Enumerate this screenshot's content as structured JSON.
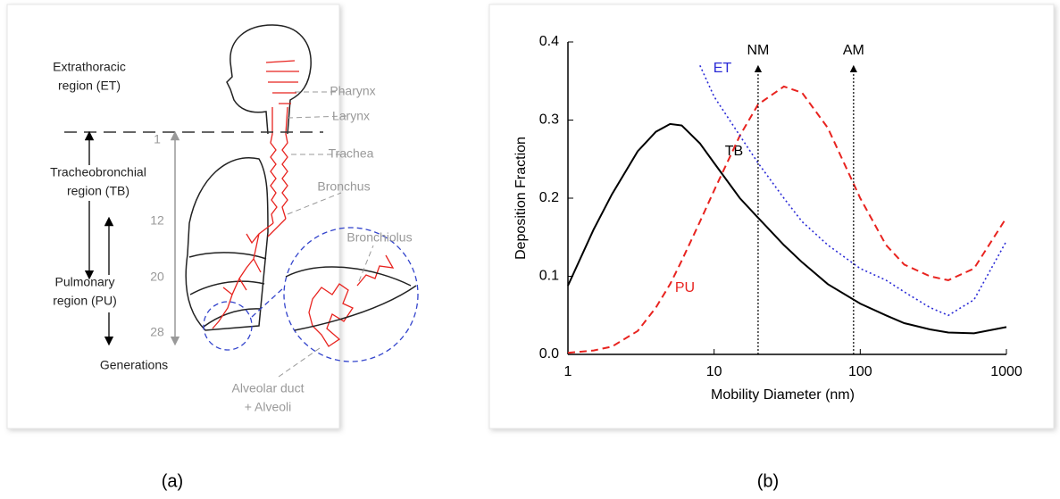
{
  "diagram": {
    "labels": [
      {
        "lines": [
          "Extrathoracic",
          "region (ET)"
        ]
      },
      {
        "lines": [
          "Tracheobronchial",
          "region (TB)"
        ]
      },
      {
        "lines": [
          "Pulmonary",
          "region (PU)"
        ]
      },
      {
        "lines": [
          "Pharynx"
        ]
      },
      {
        "lines": [
          "Larynx"
        ]
      },
      {
        "lines": [
          "Trachea"
        ]
      },
      {
        "lines": [
          "Bronchus"
        ]
      },
      {
        "lines": [
          "Bronchiolus"
        ]
      },
      {
        "lines": [
          "Alveolar duct",
          "+ Alveoli"
        ]
      },
      {
        "lines": [
          "Generations"
        ]
      }
    ],
    "generations": [
      "1",
      "12",
      "20",
      "28"
    ]
  },
  "captions": [
    "(a)",
    "(b)"
  ],
  "chart_data": {
    "type": "line",
    "xlabel": "Mobility Diameter (nm)",
    "ylabel": "Deposition Fraction",
    "log_x": true,
    "xlim": [
      1,
      1000
    ],
    "xticks": [
      1,
      10,
      100,
      1000
    ],
    "ylim": [
      0,
      0.4
    ],
    "yticks": [
      {
        "value": 0,
        "label": "0.0"
      },
      0.1,
      0.2,
      0.3,
      0.4
    ],
    "x": [
      1,
      1.5,
      2,
      3,
      4,
      5,
      6,
      8,
      10,
      15,
      20,
      30,
      40,
      60,
      100,
      150,
      200,
      300,
      400,
      600,
      1000
    ],
    "series": [
      {
        "name": "TB",
        "color": "#000000",
        "dash": "solid",
        "values": [
          0.088,
          0.16,
          0.205,
          0.26,
          0.285,
          0.295,
          0.293,
          0.27,
          0.245,
          0.2,
          0.175,
          0.14,
          0.118,
          0.09,
          0.065,
          0.05,
          0.04,
          0.032,
          0.028,
          0.027,
          0.035
        ]
      },
      {
        "name": "PU",
        "color": "#e8231f",
        "dash": "dashed",
        "values": [
          0.002,
          0.005,
          0.01,
          0.03,
          0.06,
          0.09,
          0.12,
          0.17,
          0.21,
          0.28,
          0.32,
          0.343,
          0.335,
          0.29,
          0.2,
          0.14,
          0.115,
          0.1,
          0.095,
          0.11,
          0.175
        ]
      },
      {
        "name": "ET",
        "color": "#2a2ad6",
        "dash": "dotted",
        "values": [
          null,
          null,
          null,
          null,
          null,
          null,
          null,
          0.37,
          0.33,
          0.28,
          0.245,
          0.2,
          0.17,
          0.14,
          0.11,
          0.095,
          0.08,
          0.06,
          0.05,
          0.07,
          0.145
        ]
      }
    ],
    "annotations": [
      {
        "text": "NM",
        "x": 20
      },
      {
        "text": "AM",
        "x": 90
      }
    ]
  }
}
